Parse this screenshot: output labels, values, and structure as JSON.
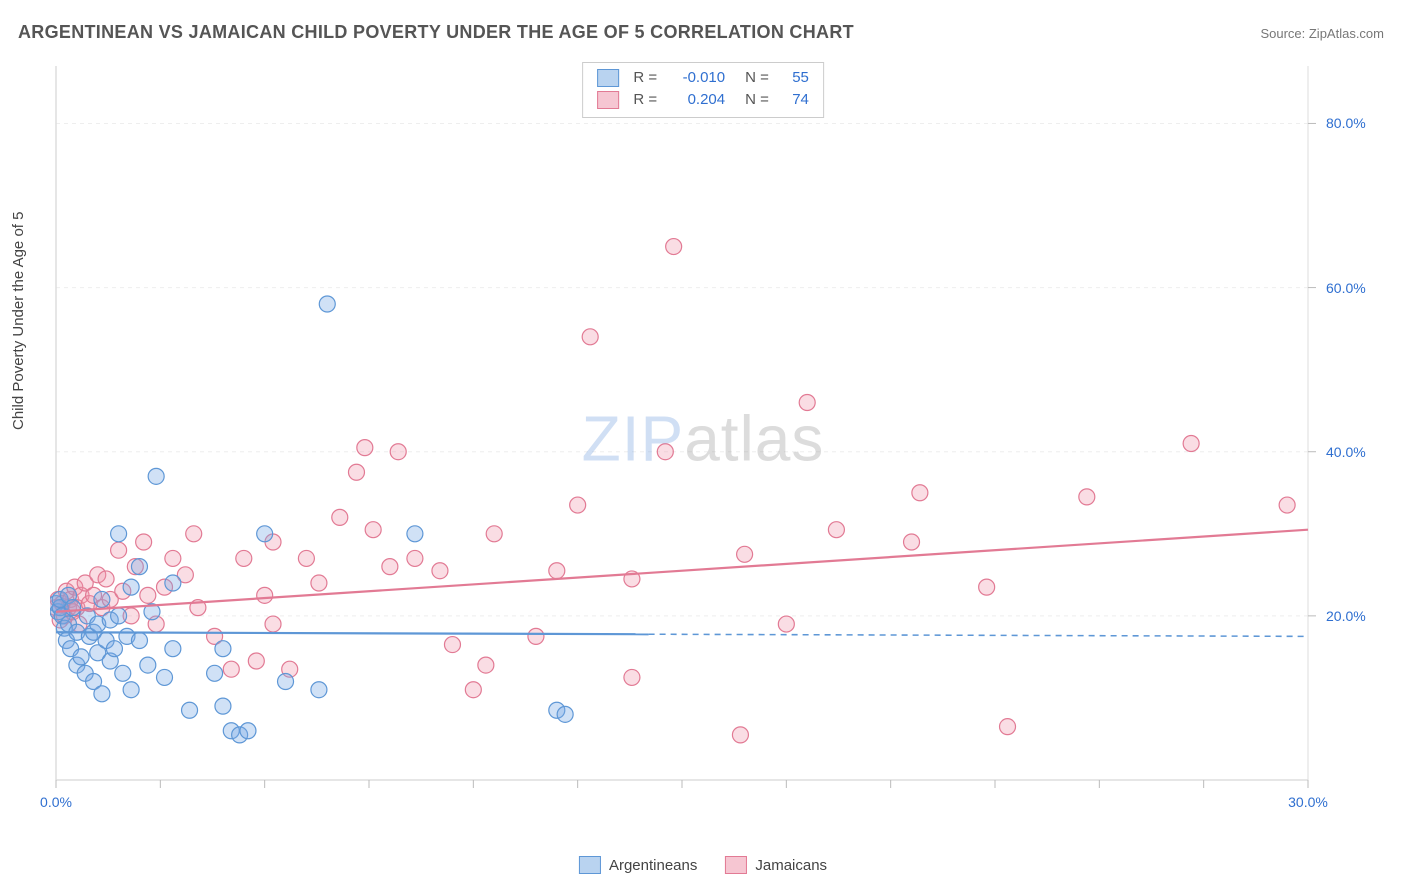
{
  "title": "ARGENTINEAN VS JAMAICAN CHILD POVERTY UNDER THE AGE OF 5 CORRELATION CHART",
  "source_prefix": "Source: ",
  "source_name": "ZipAtlas.com",
  "ylabel": "Child Poverty Under the Age of 5",
  "watermark": {
    "part1": "ZIP",
    "part2": "atlas"
  },
  "chart": {
    "type": "scatter",
    "xlim": [
      0,
      30
    ],
    "ylim": [
      0,
      87
    ],
    "x_ticks": [
      0,
      2.5,
      5,
      7.5,
      10,
      12.5,
      15,
      17.5,
      20,
      22.5,
      25,
      27.5,
      30
    ],
    "x_tick_labels": {
      "0": "0.0%",
      "30": "30.0%"
    },
    "y_ticks": [
      20,
      40,
      60,
      80
    ],
    "y_tick_labels": {
      "20": "20.0%",
      "40": "40.0%",
      "60": "60.0%",
      "80": "80.0%"
    },
    "y_grid_values": [
      20,
      40,
      60,
      80
    ],
    "background_color": "#ffffff",
    "grid_color": "#eeeeee",
    "axis_color": "#dddddd",
    "tick_color": "#bbbbbb",
    "marker_radius": 8,
    "marker_stroke_width": 1.2,
    "trend_line_width": 2.2,
    "label_fontsize": 14,
    "series": [
      {
        "key": "argentineans",
        "legend_label": "Argentineans",
        "fill_color": "rgba(120,170,230,0.35)",
        "stroke_color": "#5e97d6",
        "swatch_fill": "#b9d3f0",
        "swatch_border": "#5e97d6",
        "R_label": "R =",
        "R_value": "-0.010",
        "N_label": "N =",
        "N_value": "55",
        "trend": {
          "y_at_x0": 18.0,
          "y_at_xmax": 17.5,
          "solid_until_x": 14.2
        },
        "points": [
          [
            0.0,
            21.5
          ],
          [
            0.05,
            20.5
          ],
          [
            0.1,
            21.0
          ],
          [
            0.1,
            22.0
          ],
          [
            0.15,
            20.0
          ],
          [
            0.2,
            18.5
          ],
          [
            0.25,
            17.0
          ],
          [
            0.3,
            19.0
          ],
          [
            0.3,
            22.5
          ],
          [
            0.35,
            16.0
          ],
          [
            0.4,
            21.0
          ],
          [
            0.5,
            14.0
          ],
          [
            0.5,
            18.0
          ],
          [
            0.6,
            15.0
          ],
          [
            0.7,
            13.0
          ],
          [
            0.75,
            20.0
          ],
          [
            0.8,
            17.5
          ],
          [
            0.9,
            18.0
          ],
          [
            0.9,
            12.0
          ],
          [
            1.0,
            15.5
          ],
          [
            1.0,
            19.0
          ],
          [
            1.1,
            22.0
          ],
          [
            1.1,
            10.5
          ],
          [
            1.2,
            17.0
          ],
          [
            1.3,
            14.5
          ],
          [
            1.3,
            19.5
          ],
          [
            1.4,
            16.0
          ],
          [
            1.5,
            20.0
          ],
          [
            1.5,
            30.0
          ],
          [
            1.6,
            13.0
          ],
          [
            1.7,
            17.5
          ],
          [
            1.8,
            23.5
          ],
          [
            1.8,
            11.0
          ],
          [
            2.0,
            17.0
          ],
          [
            2.0,
            26.0
          ],
          [
            2.2,
            14.0
          ],
          [
            2.3,
            20.5
          ],
          [
            2.4,
            37.0
          ],
          [
            2.6,
            12.5
          ],
          [
            2.8,
            16.0
          ],
          [
            2.8,
            24.0
          ],
          [
            3.2,
            8.5
          ],
          [
            3.8,
            13.0
          ],
          [
            4.0,
            9.0
          ],
          [
            4.0,
            16.0
          ],
          [
            4.2,
            6.0
          ],
          [
            4.4,
            5.5
          ],
          [
            4.6,
            6.0
          ],
          [
            5.0,
            30.0
          ],
          [
            5.5,
            12.0
          ],
          [
            6.3,
            11.0
          ],
          [
            6.5,
            58.0
          ],
          [
            8.6,
            30.0
          ],
          [
            12.0,
            8.5
          ],
          [
            12.2,
            8.0
          ]
        ]
      },
      {
        "key": "jamaicans",
        "legend_label": "Jamaicans",
        "fill_color": "rgba(240,150,170,0.32)",
        "stroke_color": "#e27a94",
        "swatch_fill": "#f6c6d2",
        "swatch_border": "#e27a94",
        "R_label": "R =",
        "R_value": "0.204",
        "N_label": "N =",
        "N_value": "74",
        "trend": {
          "y_at_x0": 20.5,
          "y_at_xmax": 30.5,
          "solid_until_x": 30
        },
        "points": [
          [
            0.0,
            21.0
          ],
          [
            0.05,
            22.0
          ],
          [
            0.1,
            19.5
          ],
          [
            0.15,
            21.5
          ],
          [
            0.2,
            20.0
          ],
          [
            0.25,
            23.0
          ],
          [
            0.3,
            21.0
          ],
          [
            0.35,
            22.0
          ],
          [
            0.4,
            20.5
          ],
          [
            0.45,
            23.5
          ],
          [
            0.5,
            21.0
          ],
          [
            0.55,
            19.0
          ],
          [
            0.6,
            22.5
          ],
          [
            0.7,
            24.0
          ],
          [
            0.8,
            21.5
          ],
          [
            0.9,
            22.5
          ],
          [
            1.0,
            25.0
          ],
          [
            1.1,
            21.0
          ],
          [
            1.2,
            24.5
          ],
          [
            1.3,
            22.0
          ],
          [
            1.5,
            28.0
          ],
          [
            1.6,
            23.0
          ],
          [
            1.8,
            20.0
          ],
          [
            1.9,
            26.0
          ],
          [
            2.1,
            29.0
          ],
          [
            2.2,
            22.5
          ],
          [
            2.4,
            19.0
          ],
          [
            2.6,
            23.5
          ],
          [
            2.8,
            27.0
          ],
          [
            3.1,
            25.0
          ],
          [
            3.3,
            30.0
          ],
          [
            3.4,
            21.0
          ],
          [
            3.8,
            17.5
          ],
          [
            4.2,
            13.5
          ],
          [
            4.5,
            27.0
          ],
          [
            4.8,
            14.5
          ],
          [
            5.0,
            22.5
          ],
          [
            5.2,
            19.0
          ],
          [
            5.2,
            29.0
          ],
          [
            5.6,
            13.5
          ],
          [
            6.0,
            27.0
          ],
          [
            6.3,
            24.0
          ],
          [
            6.8,
            32.0
          ],
          [
            7.2,
            37.5
          ],
          [
            7.4,
            40.5
          ],
          [
            7.6,
            30.5
          ],
          [
            8.0,
            26.0
          ],
          [
            8.2,
            40.0
          ],
          [
            8.6,
            27.0
          ],
          [
            9.2,
            25.5
          ],
          [
            9.5,
            16.5
          ],
          [
            10.0,
            11.0
          ],
          [
            10.3,
            14.0
          ],
          [
            10.5,
            30.0
          ],
          [
            11.5,
            17.5
          ],
          [
            12.0,
            25.5
          ],
          [
            12.5,
            33.5
          ],
          [
            12.8,
            54.0
          ],
          [
            13.8,
            12.5
          ],
          [
            13.8,
            24.5
          ],
          [
            14.6,
            40.0
          ],
          [
            14.8,
            65.0
          ],
          [
            16.4,
            5.5
          ],
          [
            16.5,
            27.5
          ],
          [
            17.5,
            19.0
          ],
          [
            18.0,
            46.0
          ],
          [
            18.7,
            30.5
          ],
          [
            20.5,
            29.0
          ],
          [
            20.7,
            35.0
          ],
          [
            22.3,
            23.5
          ],
          [
            22.8,
            6.5
          ],
          [
            24.7,
            34.5
          ],
          [
            27.2,
            41.0
          ],
          [
            29.5,
            33.5
          ]
        ]
      }
    ]
  }
}
